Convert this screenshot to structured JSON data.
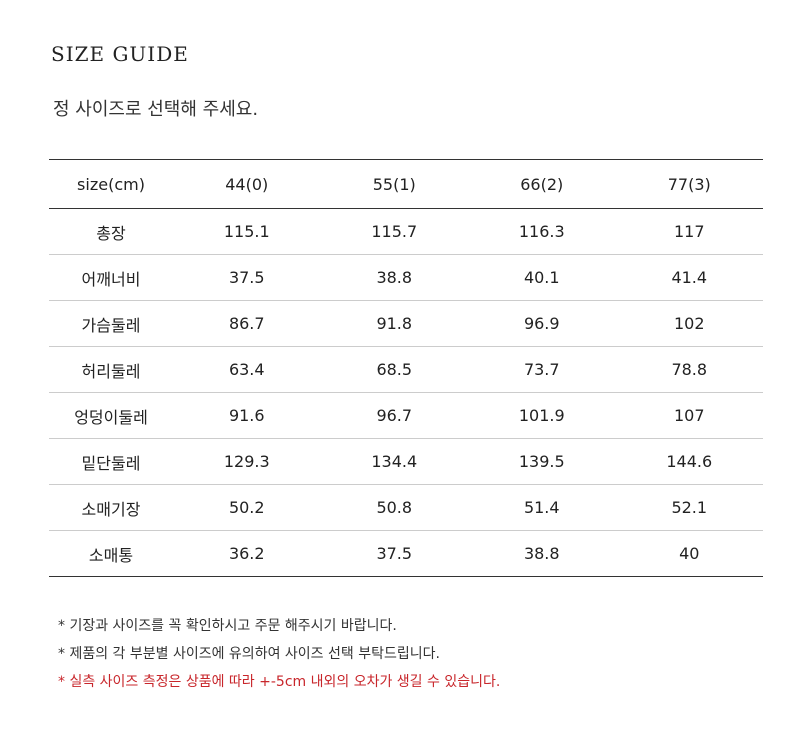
{
  "title": "SIZE GUIDE",
  "subtitle": "정 사이즈로 선택해 주세요.",
  "table": {
    "headers": [
      "size(cm)",
      "44(0)",
      "55(1)",
      "66(2)",
      "77(3)"
    ],
    "rows": [
      [
        "총장",
        "115.1",
        "115.7",
        "116.3",
        "117"
      ],
      [
        "어깨너비",
        "37.5",
        "38.8",
        "40.1",
        "41.4"
      ],
      [
        "가슴둘레",
        "86.7",
        "91.8",
        "96.9",
        "102"
      ],
      [
        "허리둘레",
        "63.4",
        "68.5",
        "73.7",
        "78.8"
      ],
      [
        "엉덩이둘레",
        "91.6",
        "96.7",
        "101.9",
        "107"
      ],
      [
        "밑단둘레",
        "129.3",
        "134.4",
        "139.5",
        "144.6"
      ],
      [
        "소매기장",
        "50.2",
        "50.8",
        "51.4",
        "52.1"
      ],
      [
        "소매통",
        "36.2",
        "37.5",
        "38.8",
        "40"
      ]
    ]
  },
  "notes": [
    "* 기장과 사이즈를 꼭 확인하시고 주문 해주시기 바랍니다.",
    "* 제품의 각 부분별 사이즈에 유의하여 사이즈 선택 부탁드립니다.",
    "* 실측 사이즈 측정은 상품에 따라 +-5cm 내외의 오차가 생길 수 있습니다."
  ],
  "colors": {
    "warning": "#c8262b"
  }
}
